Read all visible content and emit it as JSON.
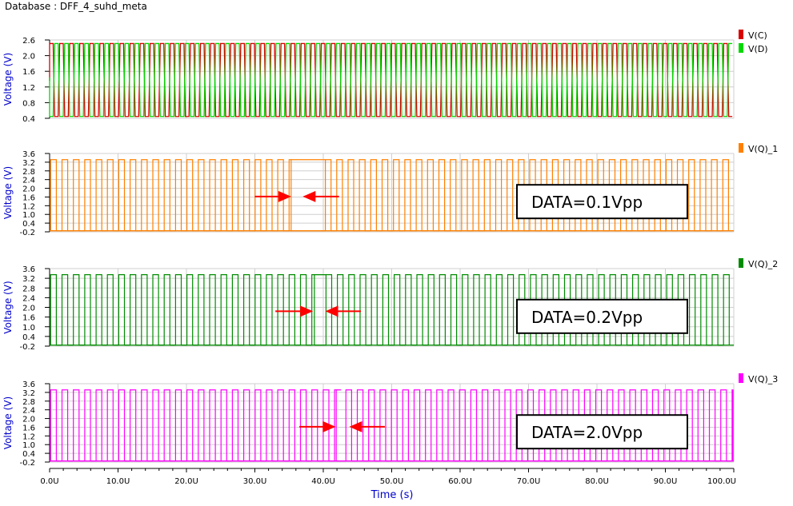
{
  "database_title": "Database : DFF_4_suhd_meta",
  "colors": {
    "vc": "#d90000",
    "vd": "#00d800",
    "q1": "#ff8000",
    "q2": "#008c00",
    "q3": "#ff00ff",
    "axis_label": "#0000cc",
    "arrow": "#ff0000"
  },
  "chart_data": [
    {
      "type": "line",
      "ylabel": "Voltage (V)",
      "yticks": [
        "2.6",
        "2.0",
        "1.6",
        "1.2",
        "0.8",
        "0.4"
      ],
      "ylim": [
        0.4,
        2.6
      ],
      "xlim": [
        0,
        100
      ],
      "grid": true,
      "legend_position": "right",
      "series": [
        {
          "name": "V(C)",
          "color": "#d90000",
          "low": 0.45,
          "high": 2.5,
          "mid": 1.45,
          "cycles": 68
        },
        {
          "name": "V(D)",
          "color": "#00d800",
          "low": 0.45,
          "high": 2.5,
          "mid": 1.55,
          "cycles": 68
        }
      ]
    },
    {
      "type": "line",
      "ylabel": "Voltage (V)",
      "yticks": [
        "3.6",
        "3.2",
        "2.8",
        "2.4",
        "2.0",
        "1.6",
        "1.2",
        "1.0",
        "0.4",
        "-0.2"
      ],
      "ylim": [
        -0.2,
        3.6
      ],
      "xlim": [
        0,
        100
      ],
      "grid": true,
      "legend_position": "right",
      "series": [
        {
          "name": "V(Q)_1",
          "color": "#ff8000",
          "low": -0.15,
          "high": 3.3,
          "period": 1.66,
          "gap_start": 35.3,
          "gap_end": 40.3
        }
      ],
      "annotation": "DATA=0.1Vpp",
      "arrows": [
        {
          "from": 30,
          "to": 35.3
        },
        {
          "from": 42.3,
          "to": 37
        }
      ]
    },
    {
      "type": "line",
      "ylabel": "Voltage (V)",
      "yticks": [
        "3.6",
        "3.2",
        "2.8",
        "2.4",
        "2.0",
        "1.6",
        "1.0",
        "0.4",
        "-0.2"
      ],
      "ylim": [
        -0.2,
        3.6
      ],
      "xlim": [
        0,
        100
      ],
      "grid": true,
      "legend_position": "right",
      "series": [
        {
          "name": "V(Q)_2",
          "color": "#008c00",
          "low": -0.15,
          "high": 3.3,
          "period": 1.66,
          "gap_start": 38.7,
          "gap_end": 40.4
        }
      ],
      "annotation": "DATA=0.2Vpp",
      "arrows": [
        {
          "from": 33,
          "to": 38.5
        },
        {
          "from": 45.5,
          "to": 40.3
        }
      ]
    },
    {
      "type": "line",
      "ylabel": "Voltage (V)",
      "yticks": [
        "3.6",
        "3.2",
        "2.8",
        "2.4",
        "2.0",
        "1.6",
        "1.2",
        "1.0",
        "0.4",
        "-0.2"
      ],
      "ylim": [
        -0.2,
        3.6
      ],
      "xlim": [
        0,
        100
      ],
      "grid": true,
      "legend_position": "right",
      "series": [
        {
          "name": "V(Q)_3",
          "color": "#ff00ff",
          "low": -0.15,
          "high": 3.3,
          "period": 1.66,
          "gap_start": 41.9,
          "gap_end": 42.6
        }
      ],
      "annotation": "DATA=2.0Vpp",
      "arrows": [
        {
          "from": 36.5,
          "to": 41.8
        },
        {
          "from": 49,
          "to": 43.8
        }
      ]
    }
  ],
  "x_axis": {
    "label": "Time (s)",
    "ticks": [
      "0.0U",
      "10.0U",
      "20.0U",
      "30.0U",
      "40.0U",
      "50.0U",
      "60.0U",
      "70.0U",
      "80.0U",
      "90.0U",
      "100.0U"
    ]
  }
}
